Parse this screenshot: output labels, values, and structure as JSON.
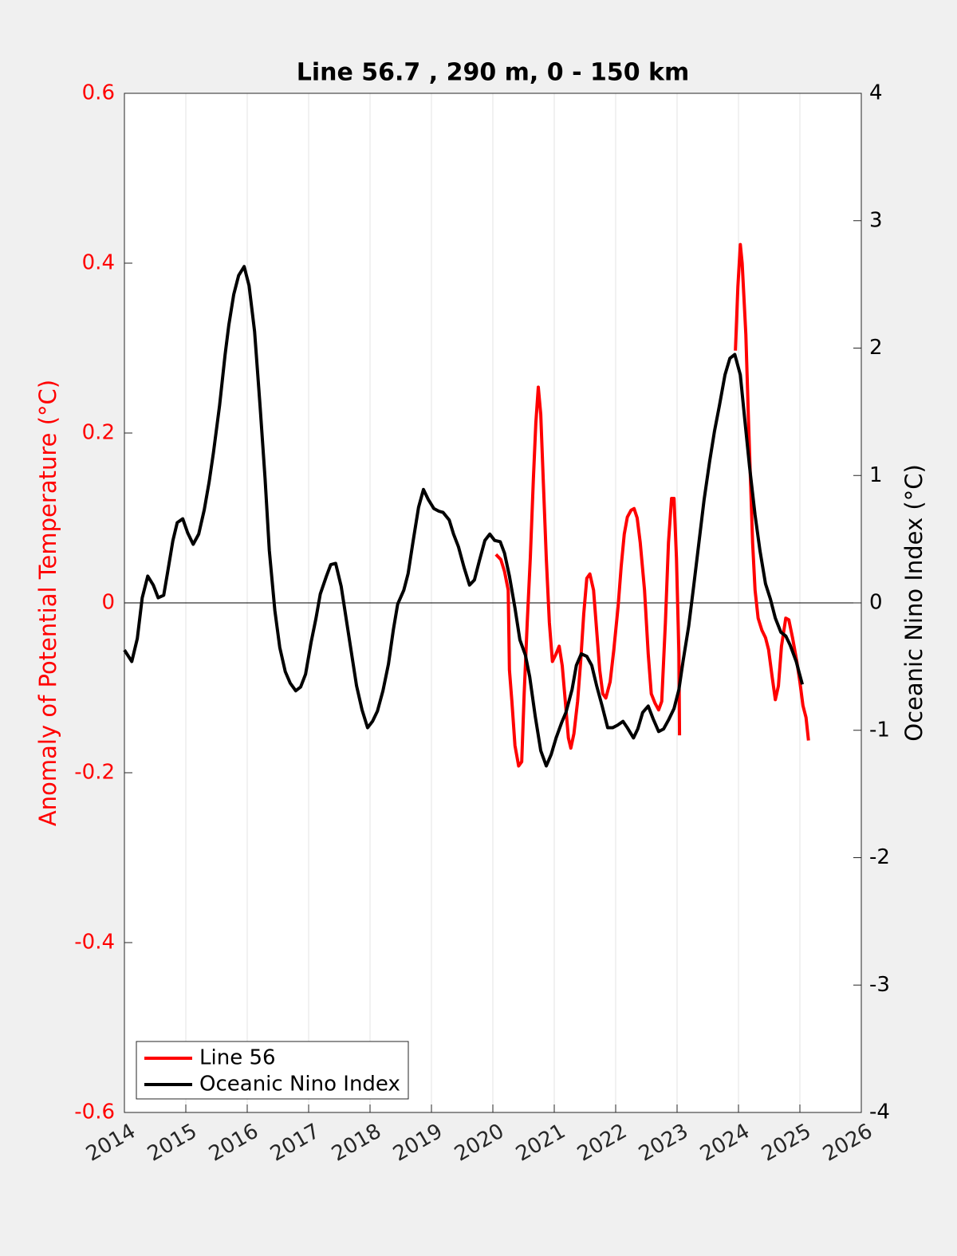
{
  "chart_data": {
    "type": "line",
    "title": "Line 56.7 , 290 m, 0 - 150 km",
    "ylabel": "Anomaly of Potential Temperature (°C)",
    "y2label": "Oceanic Nino Index (°C)",
    "xlim": [
      2014,
      2026
    ],
    "xticks": [
      2014,
      2015,
      2016,
      2017,
      2018,
      2019,
      2020,
      2021,
      2022,
      2023,
      2024,
      2025,
      2026
    ],
    "ylim": [
      -0.6,
      0.6
    ],
    "yticks": [
      -0.6,
      -0.4,
      -0.2,
      0,
      0.2,
      0.4,
      0.6
    ],
    "y2lim": [
      -4,
      4
    ],
    "y2ticks": [
      -4,
      -3,
      -2,
      -1,
      0,
      1,
      2,
      3,
      4
    ],
    "grid": true,
    "legend": "lower left",
    "series": [
      {
        "name": "Line 56",
        "color": "#ff0000",
        "axis": "y",
        "x": [
          2020.05,
          2020.13,
          2020.19,
          2020.25,
          2020.27,
          2020.31,
          2020.36,
          2020.42,
          2020.47,
          2020.51,
          2020.56,
          2020.61,
          2020.66,
          2020.7,
          2020.74,
          2020.78,
          2020.82,
          2020.87,
          2020.92,
          2020.97,
          2021.03,
          2021.08,
          2021.13,
          2021.18,
          2021.23,
          2021.27,
          2021.32,
          2021.38,
          2021.43,
          2021.48,
          2021.53,
          2021.58,
          2021.64,
          2021.69,
          2021.74,
          2021.79,
          2021.84,
          2021.91,
          2021.97,
          2022.04,
          2022.09,
          2022.14,
          2022.19,
          2022.25,
          2022.3,
          2022.35,
          2022.4,
          2022.47,
          2022.53,
          2022.58,
          2022.64,
          2022.7,
          2022.75,
          2022.81,
          2022.86,
          2022.91,
          2022.95,
          2022.99,
          2023.03,
          2023.04,
          2023.5,
          2023.95,
          2023.99,
          2024.03,
          2024.06,
          2024.12,
          2024.16,
          2024.19,
          2024.23,
          2024.27,
          2024.32,
          2024.38,
          2024.44,
          2024.49,
          2024.55,
          2024.6,
          2024.65,
          2024.7,
          2024.77,
          2024.82,
          2024.88,
          2024.95,
          2025.0,
          2025.05,
          2025.1,
          2025.14
        ],
        "values": [
          0.057,
          0.051,
          0.037,
          0.015,
          -0.079,
          -0.116,
          -0.168,
          -0.192,
          -0.187,
          -0.107,
          -0.023,
          0.053,
          0.146,
          0.212,
          0.254,
          0.222,
          0.146,
          0.053,
          -0.023,
          -0.069,
          -0.06,
          -0.051,
          -0.074,
          -0.116,
          -0.159,
          -0.171,
          -0.154,
          -0.116,
          -0.069,
          -0.013,
          0.029,
          0.034,
          0.015,
          -0.032,
          -0.079,
          -0.107,
          -0.112,
          -0.093,
          -0.055,
          -0.004,
          0.043,
          0.081,
          0.101,
          0.109,
          0.111,
          0.1,
          0.071,
          0.015,
          -0.06,
          -0.107,
          -0.118,
          -0.126,
          -0.116,
          -0.023,
          0.071,
          0.123,
          0.123,
          0.053,
          -0.06,
          -0.156,
          null,
          0.297,
          0.372,
          0.422,
          0.4,
          0.316,
          0.222,
          0.156,
          0.071,
          0.015,
          -0.018,
          -0.032,
          -0.041,
          -0.055,
          -0.088,
          -0.114,
          -0.098,
          -0.051,
          -0.018,
          -0.02,
          -0.041,
          -0.069,
          -0.093,
          -0.121,
          -0.135,
          -0.162
        ]
      },
      {
        "name": "Oceanic Nino Index",
        "color": "#000000",
        "axis": "y2",
        "x": [
          2014.0,
          2014.12,
          2014.21,
          2014.29,
          2014.38,
          2014.47,
          2014.55,
          2014.64,
          2014.7,
          2014.79,
          2014.86,
          2014.95,
          2015.03,
          2015.12,
          2015.21,
          2015.3,
          2015.38,
          2015.45,
          2015.55,
          2015.64,
          2015.7,
          2015.78,
          2015.86,
          2015.95,
          2016.03,
          2016.12,
          2016.21,
          2016.29,
          2016.36,
          2016.45,
          2016.53,
          2016.62,
          2016.7,
          2016.79,
          2016.87,
          2016.95,
          2017.04,
          2017.12,
          2017.19,
          2017.29,
          2017.36,
          2017.44,
          2017.53,
          2017.61,
          2017.69,
          2017.78,
          2017.87,
          2017.96,
          2018.04,
          2018.12,
          2018.21,
          2018.3,
          2018.38,
          2018.45,
          2018.55,
          2018.62,
          2018.7,
          2018.79,
          2018.87,
          2018.95,
          2019.04,
          2019.12,
          2019.19,
          2019.29,
          2019.36,
          2019.44,
          2019.53,
          2019.62,
          2019.7,
          2019.78,
          2019.87,
          2019.95,
          2020.03,
          2020.12,
          2020.19,
          2020.27,
          2020.36,
          2020.44,
          2020.53,
          2020.6,
          2020.69,
          2020.78,
          2020.87,
          2020.95,
          2021.03,
          2021.12,
          2021.19,
          2021.29,
          2021.36,
          2021.44,
          2021.53,
          2021.61,
          2021.69,
          2021.78,
          2021.87,
          2021.95,
          2022.03,
          2022.12,
          2022.19,
          2022.29,
          2022.36,
          2022.44,
          2022.53,
          2022.61,
          2022.7,
          2022.78,
          2022.86,
          2022.95,
          2023.03,
          2023.1,
          2023.19,
          2023.27,
          2023.36,
          2023.44,
          2023.53,
          2023.61,
          2023.69,
          2023.78,
          2023.86,
          2023.94,
          2024.03,
          2024.1,
          2024.18,
          2024.27,
          2024.35,
          2024.44,
          2024.52,
          2024.6,
          2024.69,
          2024.77,
          2024.84,
          2024.94,
          2025.04
        ],
        "values": [
          -0.37,
          -0.46,
          -0.28,
          0.04,
          0.21,
          0.14,
          0.04,
          0.06,
          0.23,
          0.49,
          0.63,
          0.66,
          0.55,
          0.46,
          0.54,
          0.73,
          0.95,
          1.18,
          1.55,
          1.95,
          2.18,
          2.42,
          2.57,
          2.64,
          2.49,
          2.13,
          1.54,
          0.98,
          0.41,
          -0.06,
          -0.35,
          -0.54,
          -0.63,
          -0.69,
          -0.66,
          -0.56,
          -0.31,
          -0.12,
          0.07,
          0.21,
          0.3,
          0.31,
          0.13,
          -0.12,
          -0.37,
          -0.65,
          -0.84,
          -0.98,
          -0.93,
          -0.85,
          -0.69,
          -0.48,
          -0.21,
          -0.01,
          0.1,
          0.23,
          0.48,
          0.75,
          0.89,
          0.81,
          0.74,
          0.72,
          0.71,
          0.65,
          0.54,
          0.44,
          0.28,
          0.14,
          0.18,
          0.33,
          0.49,
          0.54,
          0.49,
          0.48,
          0.39,
          0.21,
          -0.04,
          -0.29,
          -0.41,
          -0.58,
          -0.89,
          -1.16,
          -1.28,
          -1.19,
          -1.06,
          -0.94,
          -0.86,
          -0.68,
          -0.49,
          -0.4,
          -0.42,
          -0.49,
          -0.65,
          -0.81,
          -0.98,
          -0.98,
          -0.96,
          -0.93,
          -0.98,
          -1.06,
          -0.99,
          -0.86,
          -0.81,
          -0.91,
          -1.01,
          -0.99,
          -0.92,
          -0.83,
          -0.68,
          -0.45,
          -0.18,
          0.13,
          0.49,
          0.81,
          1.11,
          1.35,
          1.55,
          1.79,
          1.92,
          1.95,
          1.79,
          1.45,
          1.07,
          0.69,
          0.41,
          0.15,
          0.03,
          -0.12,
          -0.23,
          -0.26,
          -0.33,
          -0.46,
          -0.64
        ]
      }
    ]
  }
}
